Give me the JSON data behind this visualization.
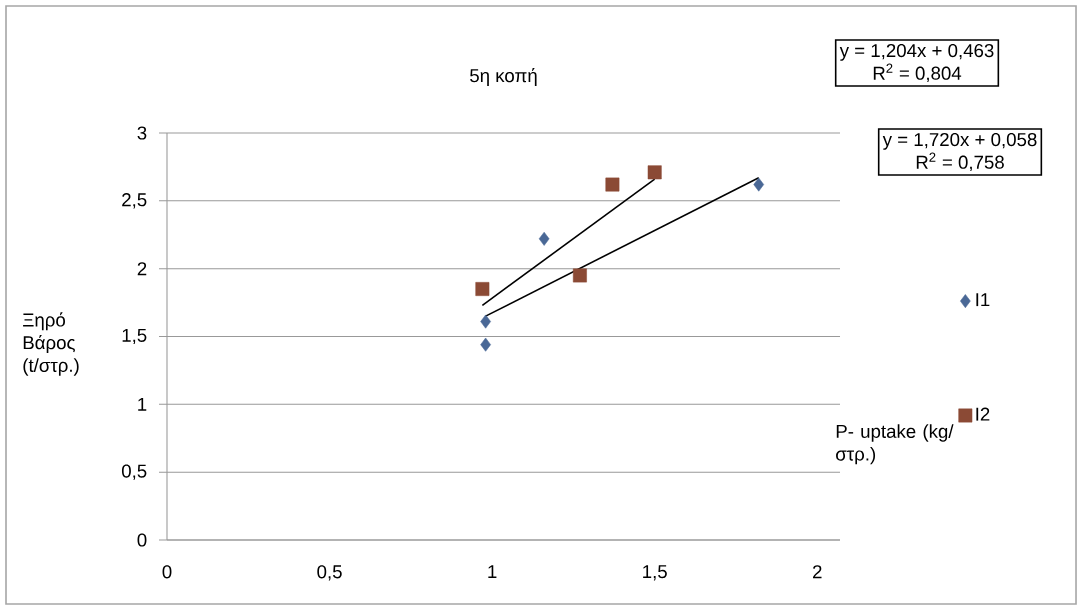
{
  "chart_data": {
    "type": "scatter",
    "title": "5η κοπή",
    "xlabel": "P- uptake (kg/ στρ.)",
    "ylabel": "Ξηρό Βάρος (t/στρ.)",
    "annotations": [
      "y = 1,204x + 0,463",
      "R$^{2}$ = 0,804",
      "y = 1,720x + 0,058",
      "R$^{2}$ = 0,758"
    ],
    "series": [
      {
        "name": "I1",
        "color": "#4a6896",
        "marker": "diamond",
        "x": [
          0.98,
          0.98,
          1.16,
          1.82
        ],
        "values": [
          1.61,
          1.44,
          2.22,
          2.62
        ]
      },
      {
        "name": "I2",
        "color": "#8b4a35",
        "marker": "square",
        "x": [
          0.97,
          1.27,
          1.37,
          1.5
        ],
        "values": [
          1.85,
          1.95,
          2.62,
          2.71
        ]
      },
      {
        "type": "line",
        "color": "#000000",
        "marker": "none",
        "x": [
          0.98,
          1.82
        ],
        "values": [
          1.65,
          2.67
        ]
      },
      {
        "type": "line",
        "color": "#000000",
        "marker": "none",
        "x": [
          0.97,
          1.5
        ],
        "values": [
          1.73,
          2.66
        ]
      }
    ],
    "xlim": [
      0,
      2.07
    ],
    "ylim": [
      0,
      3
    ],
    "xticks": [
      0,
      {
        "value": 0.5,
        "label": "0,5"
      },
      1,
      {
        "value": 1.5,
        "label": "1,5"
      },
      2
    ],
    "yticks": [
      0,
      {
        "value": 0.5,
        "label": "0,5"
      },
      1,
      {
        "value": 1.5,
        "label": "1,5"
      },
      2,
      {
        "value": 2.5,
        "label": "2,5"
      },
      3
    ],
    "grid": "y",
    "legend": "right"
  }
}
